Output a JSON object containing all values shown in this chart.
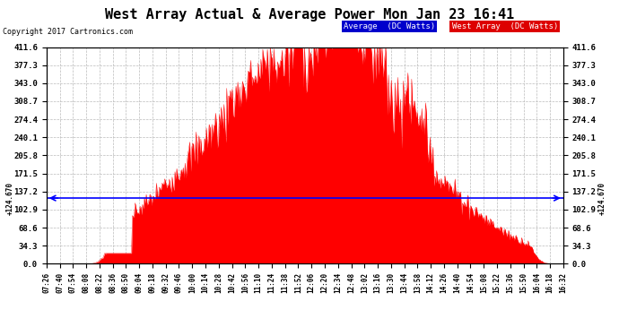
{
  "title": "West Array Actual & Average Power Mon Jan 23 16:41",
  "copyright": "Copyright 2017 Cartronics.com",
  "avg_value": 124.67,
  "ymax": 411.6,
  "yticks": [
    0.0,
    34.3,
    68.6,
    102.9,
    137.2,
    171.5,
    205.8,
    240.1,
    274.4,
    308.7,
    343.0,
    377.3,
    411.6
  ],
  "background_color": "#ffffff",
  "fill_color": "#ff0000",
  "avg_line_color": "#0000ff",
  "grid_color": "#bbbbbb",
  "legend_avg_bg": "#0000cc",
  "legend_west_bg": "#dd0000",
  "x_tick_labels": [
    "07:26",
    "07:40",
    "07:54",
    "08:08",
    "08:22",
    "08:36",
    "08:50",
    "09:04",
    "09:18",
    "09:32",
    "09:46",
    "10:00",
    "10:14",
    "10:28",
    "10:42",
    "10:56",
    "11:10",
    "11:24",
    "11:38",
    "11:52",
    "12:06",
    "12:20",
    "12:34",
    "12:48",
    "13:02",
    "13:16",
    "13:30",
    "13:44",
    "13:58",
    "14:12",
    "14:26",
    "14:40",
    "14:54",
    "15:08",
    "15:22",
    "15:36",
    "15:50",
    "16:04",
    "16:18",
    "16:32"
  ],
  "num_points": 560
}
